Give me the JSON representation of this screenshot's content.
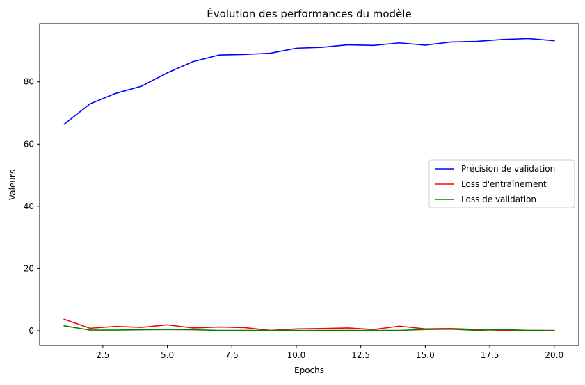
{
  "chart_data": {
    "type": "line",
    "title": "Évolution des performances du modèle",
    "xlabel": "Epochs",
    "ylabel": "Valeurs",
    "xlim": [
      0.05,
      20.95
    ],
    "ylim": [
      -4.7,
      98.7
    ],
    "xticks": [
      2.5,
      5.0,
      7.5,
      10.0,
      12.5,
      15.0,
      17.5,
      20.0
    ],
    "xtick_labels": [
      "2.5",
      "5.0",
      "7.5",
      "10.0",
      "12.5",
      "15.0",
      "17.5",
      "20.0"
    ],
    "yticks": [
      0,
      20,
      40,
      60,
      80
    ],
    "ytick_labels": [
      "0",
      "20",
      "40",
      "60",
      "80"
    ],
    "grid": false,
    "legend_position": "center-right",
    "x": [
      1,
      2,
      3,
      4,
      5,
      6,
      7,
      8,
      9,
      10,
      11,
      12,
      13,
      14,
      15,
      16,
      17,
      18,
      19,
      20
    ],
    "series": [
      {
        "name": "Précision de validation",
        "color": "#0000ff",
        "values": [
          66.4,
          72.9,
          76.3,
          78.6,
          82.9,
          86.5,
          88.6,
          88.8,
          89.2,
          90.8,
          91.1,
          91.9,
          91.7,
          92.5,
          91.8,
          92.8,
          93.0,
          93.6,
          93.9,
          93.2
        ]
      },
      {
        "name": "Loss d'entraînement",
        "color": "#ff0000",
        "values": [
          3.7,
          0.8,
          1.4,
          1.1,
          1.9,
          0.9,
          1.2,
          1.0,
          0.1,
          0.6,
          0.7,
          0.9,
          0.4,
          1.5,
          0.6,
          0.7,
          0.4,
          0.1,
          0.1,
          0.1
        ]
      },
      {
        "name": "Loss de validation",
        "color": "#008000",
        "values": [
          1.6,
          0.2,
          0.2,
          0.3,
          0.4,
          0.3,
          0.1,
          0.1,
          0.1,
          0.1,
          0.1,
          0.1,
          0.1,
          0.1,
          0.4,
          0.5,
          0.1,
          0.4,
          0.1,
          0.0
        ]
      }
    ]
  }
}
